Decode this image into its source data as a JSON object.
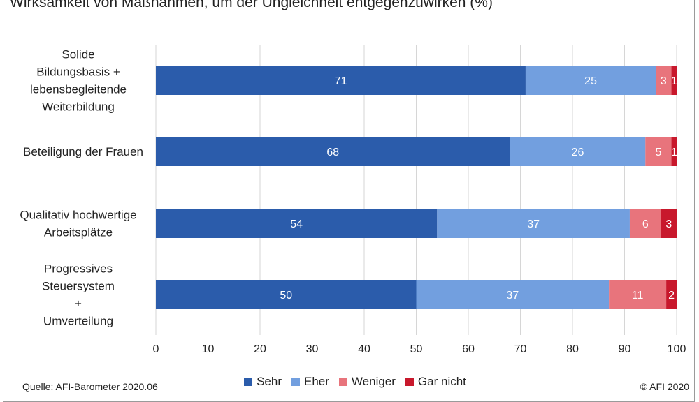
{
  "title": "Wirksamkeit von Maßnahmen, um der Ungleichheit entgegenzuwirken (%)",
  "source": "Quelle: AFI-Barometer 2020.06",
  "copyright": "© AFI 2020",
  "colors": {
    "Sehr": "#2b5cab",
    "Eher": "#729fdf",
    "Weniger": "#e8747c",
    "Gar nicht": "#c8182c",
    "grid": "#d6d6d6"
  },
  "chart_data": {
    "type": "bar",
    "orientation": "horizontal",
    "stacked": true,
    "title": "Wirksamkeit von Maßnahmen, um der Ungleichheit entgegenzuwirken (%)",
    "categories": [
      [
        "Solide",
        "Bildungsbasis +",
        "lebensbegleitende",
        "Weiterbildung"
      ],
      [
        "Beteiligung der Frauen"
      ],
      [
        "Qualitativ hochwertige",
        "Arbeitsplätze"
      ],
      [
        "Progressives",
        "Steuersystem",
        "+",
        "Umverteilung"
      ]
    ],
    "series": [
      {
        "name": "Sehr",
        "values": [
          71,
          68,
          54,
          50
        ]
      },
      {
        "name": "Eher",
        "values": [
          25,
          26,
          37,
          37
        ]
      },
      {
        "name": "Weniger",
        "values": [
          3,
          5,
          6,
          11
        ]
      },
      {
        "name": "Gar nicht",
        "values": [
          1,
          1,
          3,
          2
        ]
      }
    ],
    "xlim": [
      0,
      100
    ],
    "xticks": [
      0,
      10,
      20,
      30,
      40,
      50,
      60,
      70,
      80,
      90,
      100
    ],
    "grid": true,
    "legend": "bottom-center"
  }
}
